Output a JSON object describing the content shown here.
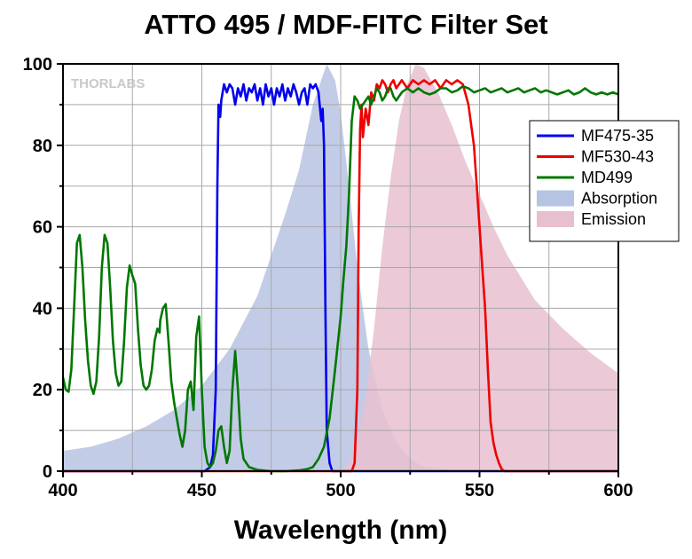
{
  "chart_data": {
    "type": "line",
    "title": "ATTO 495 / MDF-FITC Filter Set",
    "xlabel": "Wavelength (nm)",
    "ylabel": "",
    "xlim": [
      400,
      600
    ],
    "ylim": [
      0,
      100
    ],
    "xticks": [
      400,
      450,
      500,
      550,
      600
    ],
    "yticks": [
      0,
      20,
      40,
      60,
      80,
      100
    ],
    "grid": true,
    "legend_position": "right",
    "watermark": "THORLABS",
    "series": [
      {
        "name": "Absorption",
        "kind": "area",
        "color": "#b7c3e3",
        "points": [
          [
            400,
            5
          ],
          [
            410,
            6
          ],
          [
            420,
            8
          ],
          [
            430,
            11
          ],
          [
            440,
            15
          ],
          [
            450,
            21
          ],
          [
            460,
            30
          ],
          [
            470,
            43
          ],
          [
            480,
            63
          ],
          [
            485,
            74
          ],
          [
            490,
            90
          ],
          [
            495,
            100
          ],
          [
            498,
            96
          ],
          [
            500,
            88
          ],
          [
            503,
            70
          ],
          [
            506,
            50
          ],
          [
            510,
            30
          ],
          [
            515,
            15
          ],
          [
            520,
            7
          ],
          [
            525,
            3
          ],
          [
            530,
            1
          ],
          [
            540,
            0.3
          ],
          [
            600,
            0
          ]
        ]
      },
      {
        "name": "Emission",
        "kind": "area",
        "color": "#e8bfcf",
        "points": [
          [
            500,
            0
          ],
          [
            503,
            2
          ],
          [
            506,
            8
          ],
          [
            509,
            18
          ],
          [
            512,
            35
          ],
          [
            515,
            55
          ],
          [
            518,
            72
          ],
          [
            521,
            86
          ],
          [
            524,
            95
          ],
          [
            527,
            100
          ],
          [
            530,
            99
          ],
          [
            535,
            93
          ],
          [
            540,
            85
          ],
          [
            545,
            76
          ],
          [
            550,
            68
          ],
          [
            555,
            60
          ],
          [
            560,
            53
          ],
          [
            570,
            42
          ],
          [
            580,
            35
          ],
          [
            590,
            29
          ],
          [
            600,
            24
          ]
        ]
      },
      {
        "name": "MF475-35",
        "kind": "line",
        "color": "#0000ee",
        "points": [
          [
            400,
            0
          ],
          [
            451,
            0
          ],
          [
            453,
            1
          ],
          [
            454,
            4
          ],
          [
            455,
            20
          ],
          [
            455.6,
            70
          ],
          [
            456,
            90
          ],
          [
            456.6,
            87
          ],
          [
            457,
            91
          ],
          [
            458,
            95
          ],
          [
            459,
            93
          ],
          [
            460,
            95
          ],
          [
            461,
            94
          ],
          [
            462,
            90
          ],
          [
            463,
            94
          ],
          [
            464,
            92
          ],
          [
            465,
            95
          ],
          [
            466,
            91
          ],
          [
            467,
            94
          ],
          [
            468,
            93
          ],
          [
            469,
            95
          ],
          [
            470,
            91
          ],
          [
            471,
            94
          ],
          [
            472,
            90
          ],
          [
            473,
            95
          ],
          [
            474,
            92
          ],
          [
            475,
            94
          ],
          [
            476,
            90
          ],
          [
            477,
            94
          ],
          [
            478,
            92
          ],
          [
            479,
            95
          ],
          [
            480,
            91
          ],
          [
            481,
            94
          ],
          [
            482,
            92
          ],
          [
            483,
            95
          ],
          [
            484,
            93
          ],
          [
            485,
            90
          ],
          [
            486,
            93
          ],
          [
            487,
            94
          ],
          [
            488,
            90
          ],
          [
            489,
            95
          ],
          [
            490,
            94
          ],
          [
            491,
            95
          ],
          [
            492,
            93
          ],
          [
            493,
            86
          ],
          [
            493.5,
            89
          ],
          [
            494,
            80
          ],
          [
            494.5,
            40
          ],
          [
            495,
            10
          ],
          [
            496,
            2
          ],
          [
            497,
            0
          ],
          [
            600,
            0
          ]
        ]
      },
      {
        "name": "MF530-43",
        "kind": "line",
        "color": "#ee0000",
        "points": [
          [
            400,
            0
          ],
          [
            504,
            0
          ],
          [
            505,
            2
          ],
          [
            506,
            20
          ],
          [
            506.5,
            60
          ],
          [
            507,
            84
          ],
          [
            507.5,
            90
          ],
          [
            508,
            82
          ],
          [
            509,
            89
          ],
          [
            510,
            85
          ],
          [
            511,
            93
          ],
          [
            512,
            91
          ],
          [
            513,
            95
          ],
          [
            514,
            94
          ],
          [
            515,
            96
          ],
          [
            516,
            95
          ],
          [
            517,
            93
          ],
          [
            518,
            95
          ],
          [
            519,
            96
          ],
          [
            520,
            94
          ],
          [
            522,
            96
          ],
          [
            524,
            94
          ],
          [
            526,
            96
          ],
          [
            528,
            95
          ],
          [
            530,
            96
          ],
          [
            532,
            95
          ],
          [
            534,
            96
          ],
          [
            536,
            94
          ],
          [
            538,
            96
          ],
          [
            540,
            95
          ],
          [
            542,
            96
          ],
          [
            544,
            95
          ],
          [
            546,
            90
          ],
          [
            547,
            85
          ],
          [
            548,
            80
          ],
          [
            549,
            70
          ],
          [
            550,
            60
          ],
          [
            551,
            50
          ],
          [
            552,
            40
          ],
          [
            553,
            25
          ],
          [
            554,
            12
          ],
          [
            555,
            7
          ],
          [
            556,
            4
          ],
          [
            557,
            2
          ],
          [
            558,
            0.5
          ],
          [
            559,
            0
          ],
          [
            600,
            0
          ]
        ]
      },
      {
        "name": "MD499",
        "kind": "line",
        "color": "#007700",
        "points": [
          [
            400,
            23
          ],
          [
            401,
            20
          ],
          [
            402,
            19.5
          ],
          [
            403,
            25
          ],
          [
            404,
            40
          ],
          [
            405,
            56
          ],
          [
            406,
            58
          ],
          [
            407,
            50
          ],
          [
            408,
            37
          ],
          [
            409,
            27
          ],
          [
            410,
            21
          ],
          [
            411,
            19
          ],
          [
            412,
            22
          ],
          [
            413,
            33
          ],
          [
            414,
            50
          ],
          [
            415,
            58
          ],
          [
            416,
            56
          ],
          [
            417,
            45
          ],
          [
            418,
            32
          ],
          [
            419,
            24
          ],
          [
            420,
            21
          ],
          [
            421,
            22
          ],
          [
            422,
            32
          ],
          [
            423,
            45
          ],
          [
            424,
            50.5
          ],
          [
            425,
            48
          ],
          [
            426,
            46
          ],
          [
            427,
            35
          ],
          [
            428,
            26
          ],
          [
            429,
            21
          ],
          [
            430,
            20
          ],
          [
            431,
            21
          ],
          [
            432,
            25
          ],
          [
            433,
            32
          ],
          [
            434,
            35
          ],
          [
            434.8,
            34
          ],
          [
            435,
            37
          ],
          [
            436,
            40
          ],
          [
            437,
            41
          ],
          [
            438,
            32
          ],
          [
            439,
            22
          ],
          [
            440,
            17
          ],
          [
            441,
            13
          ],
          [
            442,
            9
          ],
          [
            443,
            6
          ],
          [
            444,
            10
          ],
          [
            445,
            20
          ],
          [
            446,
            22
          ],
          [
            447,
            15
          ],
          [
            448,
            33
          ],
          [
            449,
            38
          ],
          [
            450,
            20
          ],
          [
            451,
            6
          ],
          [
            452,
            2
          ],
          [
            453,
            1
          ],
          [
            454,
            2
          ],
          [
            455,
            5
          ],
          [
            456,
            10
          ],
          [
            457,
            11
          ],
          [
            458,
            6
          ],
          [
            459,
            2
          ],
          [
            460,
            5
          ],
          [
            461,
            20
          ],
          [
            462,
            29.5
          ],
          [
            463,
            20
          ],
          [
            464,
            8
          ],
          [
            465,
            3
          ],
          [
            467,
            1
          ],
          [
            470,
            0.3
          ],
          [
            475,
            0
          ],
          [
            480,
            0
          ],
          [
            485,
            0.2
          ],
          [
            488,
            0.5
          ],
          [
            490,
            1
          ],
          [
            492,
            3
          ],
          [
            494,
            6
          ],
          [
            496,
            13
          ],
          [
            498,
            25
          ],
          [
            500,
            38
          ],
          [
            501,
            47
          ],
          [
            502,
            55
          ],
          [
            503,
            68
          ],
          [
            504,
            86
          ],
          [
            505,
            92
          ],
          [
            506,
            91
          ],
          [
            507,
            89
          ],
          [
            508,
            90
          ],
          [
            509,
            91
          ],
          [
            510,
            92
          ],
          [
            511,
            90
          ],
          [
            512,
            92
          ],
          [
            513,
            94
          ],
          [
            514,
            93
          ],
          [
            515,
            91
          ],
          [
            516,
            92
          ],
          [
            517,
            94
          ],
          [
            518,
            94
          ],
          [
            519,
            92
          ],
          [
            520,
            91
          ],
          [
            522,
            93
          ],
          [
            524,
            94
          ],
          [
            526,
            93
          ],
          [
            528,
            94
          ],
          [
            530,
            93
          ],
          [
            532,
            92.5
          ],
          [
            534,
            93
          ],
          [
            536,
            94
          ],
          [
            538,
            94
          ],
          [
            540,
            93
          ],
          [
            542,
            93.5
          ],
          [
            544,
            94.5
          ],
          [
            546,
            94
          ],
          [
            548,
            93
          ],
          [
            550,
            93.5
          ],
          [
            552,
            94
          ],
          [
            554,
            93
          ],
          [
            556,
            93.5
          ],
          [
            558,
            94
          ],
          [
            560,
            93
          ],
          [
            562,
            93.5
          ],
          [
            564,
            94
          ],
          [
            566,
            93
          ],
          [
            568,
            93.5
          ],
          [
            570,
            94
          ],
          [
            572,
            93
          ],
          [
            574,
            93.5
          ],
          [
            576,
            93
          ],
          [
            578,
            92.5
          ],
          [
            580,
            93
          ],
          [
            582,
            93.5
          ],
          [
            584,
            92.5
          ],
          [
            586,
            93
          ],
          [
            588,
            94
          ],
          [
            590,
            93
          ],
          [
            592,
            92.5
          ],
          [
            594,
            93
          ],
          [
            596,
            92.5
          ],
          [
            598,
            93
          ],
          [
            600,
            92.5
          ]
        ]
      }
    ],
    "legend": [
      "MF475-35",
      "MF530-43",
      "MD499",
      "Absorption",
      "Emission"
    ]
  }
}
